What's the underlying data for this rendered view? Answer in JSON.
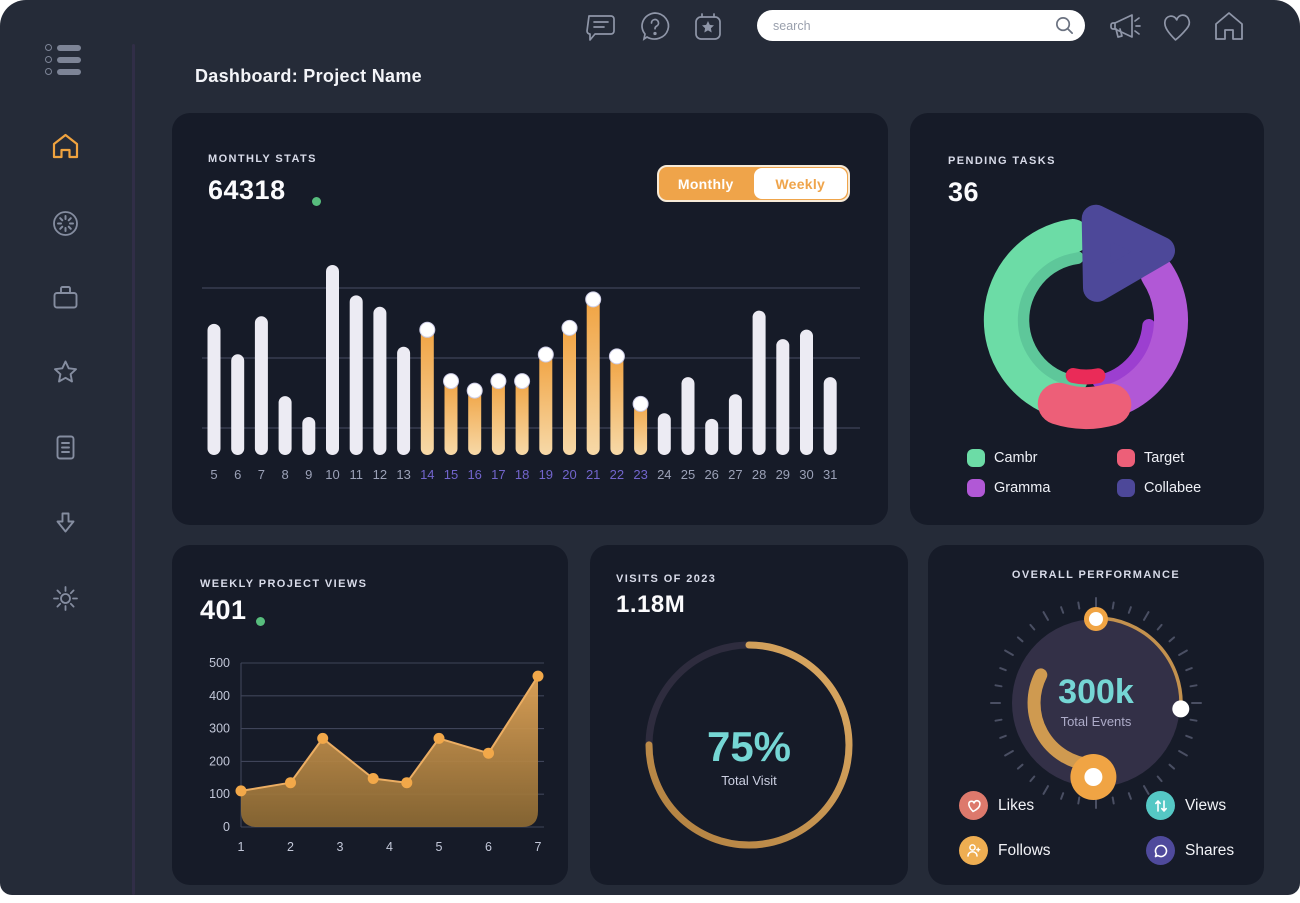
{
  "topbar": {
    "search_placeholder": "search"
  },
  "page_title": "Dashboard: Project Name",
  "colors": {
    "positive_dot": "#57bd7d",
    "accent_orange": "#efa44a",
    "teal": "#75d6d4",
    "card_bg": "#161b28",
    "page_bg": "#252b38"
  },
  "cards": {
    "monthly_stats": {
      "label": "MONTHLY STATS",
      "value": "64318",
      "toggle": {
        "monthly": "Monthly",
        "weekly": "Weekly",
        "active": "Monthly"
      },
      "chart_data": {
        "type": "bar",
        "categories": [
          5,
          6,
          7,
          8,
          9,
          10,
          11,
          12,
          13,
          14,
          15,
          16,
          17,
          18,
          19,
          20,
          21,
          22,
          23,
          24,
          25,
          26,
          27,
          28,
          29,
          30,
          31
        ],
        "values": [
          69,
          53,
          73,
          31,
          20,
          100,
          84,
          78,
          57,
          68,
          41,
          36,
          41,
          41,
          55,
          69,
          84,
          54,
          29,
          22,
          41,
          19,
          32,
          76,
          61,
          66,
          41
        ],
        "value_scale": "percent-of-max",
        "highlight_range": [
          14,
          23
        ],
        "bar_color": "#ecebf3",
        "highlight_gradient": [
          "#f0a240",
          "#f7d9a8"
        ],
        "label_color": "#9ba1b7",
        "highlight_label_color": "#7265cc",
        "grid": true
      }
    },
    "pending_tasks": {
      "label": "PENDING TASKS",
      "value": "36",
      "legend": [
        {
          "label": "Cambr",
          "color": "#6cdca6"
        },
        {
          "label": "Target",
          "color": "#ed5f78"
        },
        {
          "label": "Gramma",
          "color": "#b158d6"
        },
        {
          "label": "Collabee",
          "color": "#4d4899"
        }
      ],
      "chart_data": {
        "type": "pie",
        "style": "segmented-donut",
        "segments": [
          {
            "name": "Cambr",
            "color": "#6cdca6",
            "sweep_deg": 154,
            "inner_color": "#5ec79a"
          },
          {
            "name": "Gramma",
            "color": "#b158d6",
            "sweep_deg": 103,
            "inner_color": "#9c3fd0"
          },
          {
            "name": "Target",
            "color": "#ed5f78",
            "sweep_deg": 34,
            "inner_color": "#ea2b58"
          },
          {
            "name": "Collabee",
            "color": "#4d4899",
            "sweep_deg": 72,
            "shape": "rounded-triangle"
          }
        ]
      }
    },
    "weekly_views": {
      "label": "WEEKLY PROJECT VIEWS",
      "value": "401",
      "chart_data": {
        "type": "area",
        "points": [
          {
            "x": 1,
            "y": 110
          },
          {
            "x": 2,
            "y": 135
          },
          {
            "x": 2.65,
            "y": 270
          },
          {
            "x": 3.67,
            "y": 148
          },
          {
            "x": 4.35,
            "y": 135
          },
          {
            "x": 5,
            "y": 270
          },
          {
            "x": 6,
            "y": 225
          },
          {
            "x": 7,
            "y": 460
          }
        ],
        "x_ticks": [
          1,
          2,
          3,
          4,
          5,
          6,
          7
        ],
        "y_ticks": [
          0,
          100,
          200,
          300,
          400,
          500
        ],
        "ylim": [
          0,
          500
        ],
        "fill_gradient": [
          "#e2a558",
          "#8f6b33"
        ],
        "line_color": "#ecae63",
        "dot_color": "#f2a849",
        "grid": true
      }
    },
    "visits": {
      "label": "VISITS OF 2023",
      "value": "1.18M",
      "chart_data": {
        "type": "donut-progress",
        "percent": 75,
        "center_label": "75%",
        "caption": "Total Visit",
        "track_color": "#2e2c3e",
        "progress_gradient": [
          "#b07f3f",
          "#dcaa63"
        ]
      }
    },
    "performance": {
      "label": "OVERALL PERFORMANCE",
      "value": "300k",
      "caption": "Total Events",
      "chart_data": {
        "type": "gauge",
        "outer_arc_deg": [
          0,
          94
        ],
        "inner_arc_deg": [
          185,
          297
        ],
        "outer_arc_color": "#c3914e",
        "inner_arc_color": "#cf9a50",
        "body_color": "#333047",
        "tick_color": "#4a4f63",
        "marker_color": "#f0a444"
      },
      "legend": [
        {
          "label": "Likes",
          "color": "#dd796c"
        },
        {
          "label": "Views",
          "color": "#55c8c5"
        },
        {
          "label": "Follows",
          "color": "#eeae52"
        },
        {
          "label": "Shares",
          "color": "#4f4a9c"
        }
      ]
    }
  }
}
